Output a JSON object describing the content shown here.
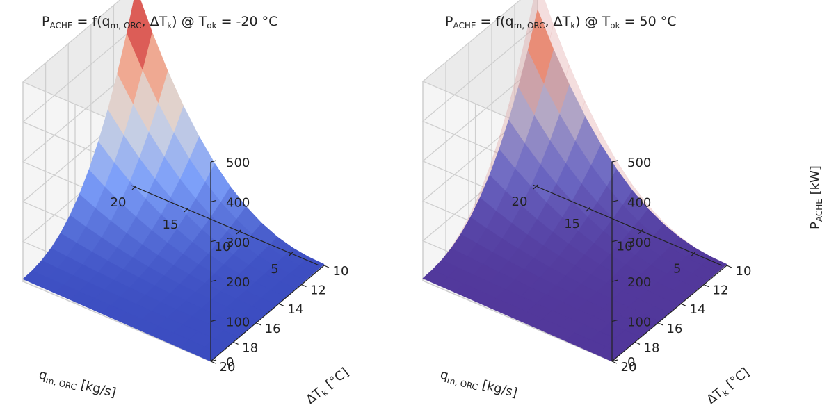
{
  "chart_data": [
    {
      "type": "surface",
      "title": {
        "lead": "P",
        "lead_sub": "ACHE",
        "mid1": " = f(q",
        "mid1_sub": "m, ORC",
        "mid2": ", ΔT",
        "mid2_sub": "k",
        "mid3": ") @ T",
        "mid3_sub": "ok",
        "tail": " = -20 °C"
      },
      "xlabel": {
        "lead": "q",
        "sub": "m, ORC",
        "tail": " [kg/s]"
      },
      "ylabel": {
        "lead": "ΔT",
        "sub": "k",
        "tail": " [°C]"
      },
      "zlabel": null,
      "x_ticks": [
        "5",
        "10",
        "15",
        "20"
      ],
      "y_ticks": [
        "10",
        "12",
        "14",
        "16",
        "18",
        "20"
      ],
      "z_ticks": [
        "0",
        "100",
        "200",
        "300",
        "400",
        "500"
      ],
      "xlim": [
        2,
        20
      ],
      "ylim": [
        10,
        20
      ],
      "zlim": [
        0,
        500
      ],
      "colormap": "coolwarm",
      "peak": {
        "x": 20,
        "y": 10,
        "z": 485
      },
      "overlay_surface": false,
      "grid": true
    },
    {
      "type": "surface",
      "title": {
        "lead": "P",
        "lead_sub": "ACHE",
        "mid1": " = f(q",
        "mid1_sub": "m, ORC",
        "mid2": ", ΔT",
        "mid2_sub": "k",
        "mid3": ") @ T",
        "mid3_sub": "ok",
        "tail": " = 50 °C"
      },
      "xlabel": {
        "lead": "q",
        "sub": "m, ORC",
        "tail": " [kg/s]"
      },
      "ylabel": {
        "lead": "ΔT",
        "sub": "k",
        "tail": " [°C]"
      },
      "zlabel": {
        "lead": "P",
        "sub": "ACHE",
        "tail": " [kW]"
      },
      "x_ticks": [
        "5",
        "10",
        "15",
        "20"
      ],
      "y_ticks": [
        "10",
        "12",
        "14",
        "16",
        "18",
        "20"
      ],
      "z_ticks": [
        "0",
        "100",
        "200",
        "300",
        "400",
        "500"
      ],
      "xlim": [
        2,
        20
      ],
      "ylim": [
        10,
        20
      ],
      "zlim": [
        0,
        500
      ],
      "colormap": "coolwarm",
      "peak": {
        "x": 20,
        "y": 10,
        "z": 430
      },
      "overlay_surface": true,
      "overlay_peak": 505,
      "overlay_color": "#d88a8a",
      "tint_color": "#5a2f8c",
      "grid": true
    }
  ]
}
